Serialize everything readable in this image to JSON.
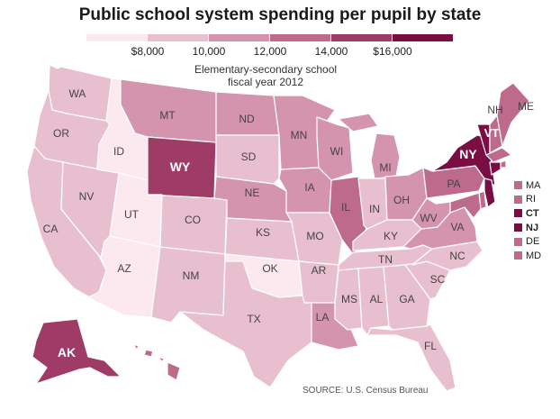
{
  "title": "Public school system spending per pupil by state",
  "subtitle_line1": "Elementary-secondary school",
  "subtitle_line2": "fiscal year 2012",
  "source": "SOURCE: U.S. Census Bureau",
  "legend": {
    "colors": [
      "#fbe9ef",
      "#e8bfce",
      "#d594ad",
      "#be6a8c",
      "#9e3c67",
      "#7a0e42"
    ],
    "ticks": [
      {
        "label": "$8,000",
        "value": 8000
      },
      {
        "label": "10,000",
        "value": 10000
      },
      {
        "label": "12,000",
        "value": 12000
      },
      {
        "label": "14,000",
        "value": 14000
      },
      {
        "label": "$16,000",
        "value": 16000
      }
    ]
  },
  "states": [
    {
      "abbr": "WA",
      "bin": 1
    },
    {
      "abbr": "OR",
      "bin": 1
    },
    {
      "abbr": "CA",
      "bin": 1
    },
    {
      "abbr": "NV",
      "bin": 1
    },
    {
      "abbr": "ID",
      "bin": 0
    },
    {
      "abbr": "UT",
      "bin": 0
    },
    {
      "abbr": "AZ",
      "bin": 0
    },
    {
      "abbr": "MT",
      "bin": 2
    },
    {
      "abbr": "WY",
      "bin": 4
    },
    {
      "abbr": "CO",
      "bin": 1
    },
    {
      "abbr": "NM",
      "bin": 1
    },
    {
      "abbr": "ND",
      "bin": 2
    },
    {
      "abbr": "SD",
      "bin": 1
    },
    {
      "abbr": "NE",
      "bin": 2
    },
    {
      "abbr": "KS",
      "bin": 1
    },
    {
      "abbr": "OK",
      "bin": 0
    },
    {
      "abbr": "TX",
      "bin": 1
    },
    {
      "abbr": "MN",
      "bin": 2
    },
    {
      "abbr": "IA",
      "bin": 2
    },
    {
      "abbr": "MO",
      "bin": 1
    },
    {
      "abbr": "AR",
      "bin": 1
    },
    {
      "abbr": "LA",
      "bin": 2
    },
    {
      "abbr": "WI",
      "bin": 2
    },
    {
      "abbr": "IL",
      "bin": 3
    },
    {
      "abbr": "MI",
      "bin": 2
    },
    {
      "abbr": "IN",
      "bin": 1
    },
    {
      "abbr": "OH",
      "bin": 2
    },
    {
      "abbr": "KY",
      "bin": 1
    },
    {
      "abbr": "TN",
      "bin": 1
    },
    {
      "abbr": "MS",
      "bin": 1
    },
    {
      "abbr": "AL",
      "bin": 1
    },
    {
      "abbr": "GA",
      "bin": 1
    },
    {
      "abbr": "FL",
      "bin": 1
    },
    {
      "abbr": "SC",
      "bin": 1
    },
    {
      "abbr": "NC",
      "bin": 1
    },
    {
      "abbr": "VA",
      "bin": 2
    },
    {
      "abbr": "WV",
      "bin": 2
    },
    {
      "abbr": "PA",
      "bin": 3
    },
    {
      "abbr": "NY",
      "bin": 5
    },
    {
      "abbr": "VT",
      "bin": 5
    },
    {
      "abbr": "NH",
      "bin": 3
    },
    {
      "abbr": "ME",
      "bin": 3
    },
    {
      "abbr": "AK",
      "bin": 4
    },
    {
      "abbr": "HI",
      "bin": 3
    }
  ],
  "small_states": [
    {
      "abbr": "MA",
      "bin": 3
    },
    {
      "abbr": "RI",
      "bin": 3
    },
    {
      "abbr": "CT",
      "bin": 5
    },
    {
      "abbr": "NJ",
      "bin": 5
    },
    {
      "abbr": "DE",
      "bin": 3
    },
    {
      "abbr": "MD",
      "bin": 3
    }
  ]
}
